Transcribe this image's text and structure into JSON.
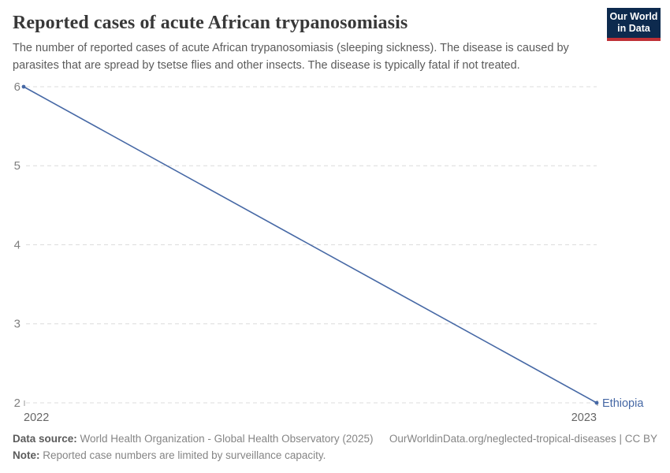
{
  "header": {
    "title": "Reported cases of acute African trypanosomiasis",
    "subtitle_line1": "The number of reported cases of acute African trypanosomiasis (sleeping sickness). The disease is caused by",
    "subtitle_line2": "parasites that are spread by tsetse flies and other insects. The disease is typically fatal if not treated.",
    "logo": {
      "line1": "Our World",
      "line2": "in Data",
      "bg_color": "#0d2a4e",
      "accent_color": "#bf3036"
    }
  },
  "chart_data": {
    "type": "line",
    "title": "Reported cases of acute African trypanosomiasis",
    "x": [
      2022,
      2023
    ],
    "xtick_labels": [
      "2022",
      "2023"
    ],
    "series": [
      {
        "name": "Ethiopia",
        "values": [
          6,
          2
        ],
        "color": "#4668a5"
      }
    ],
    "ylim": [
      2,
      6
    ],
    "yticks": [
      2,
      3,
      4,
      5,
      6
    ],
    "ylabel": "",
    "xlabel": "",
    "grid": "horizontal-dashed",
    "legend_position": "end-of-line",
    "gridline_color": "#dcdcdc",
    "ytick_color": "#7f7f7f",
    "xtick_color": "#666666"
  },
  "footer": {
    "source_label": "Data source:",
    "source_text": " World Health Organization - Global Health Observatory (2025)",
    "rights_text": "OurWorldinData.org/neglected-tropical-diseases | CC BY",
    "note_label": "Note:",
    "note_text": " Reported case numbers are limited by surveillance capacity."
  }
}
